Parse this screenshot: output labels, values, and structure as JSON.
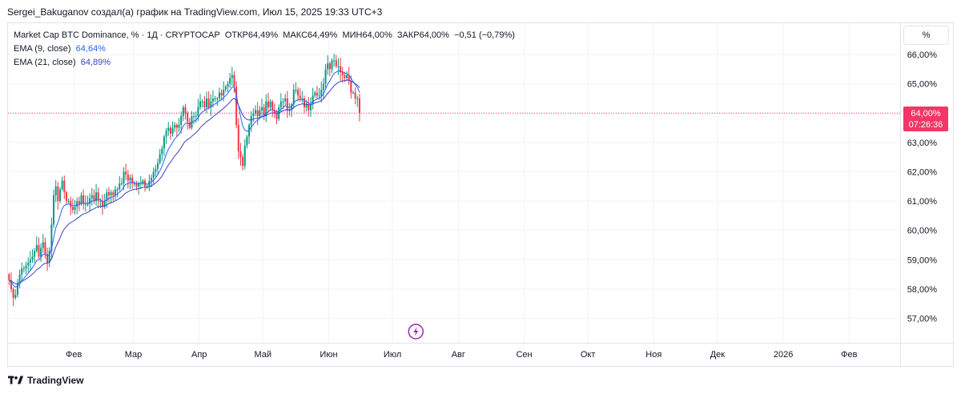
{
  "header": {
    "title": "Sergei_Bakuganov создал(а) график на TradingView.com, Июл 15, 2025 19:33 UTC+3"
  },
  "legend": {
    "symbol": "Market Cap BTC Dominance, % · 1Д · CRYPTOCAP",
    "open_label": "ОТКР",
    "open": "64,49%",
    "high_label": "МАКС",
    "high": "64,49%",
    "low_label": "МИН",
    "low": "64,00%",
    "close_label": "ЗАКР",
    "close": "64,00%",
    "change": "−0,51 (−0,79%)",
    "ema9_label": "EMA (9, close)",
    "ema9_value": "64,64%",
    "ema21_label": "EMA (21, close)",
    "ema21_value": "64,89%"
  },
  "scale_mode": "%",
  "price_tag": {
    "value": "64,00%",
    "countdown": "07:26:36"
  },
  "footer": {
    "brand": "TradingView"
  },
  "icons": {
    "lightning": "lightning-icon",
    "logo": "tradingview-logo-icon"
  },
  "colors": {
    "up": "#089981",
    "down": "#f23645",
    "ema9": "#2962ff",
    "ema21": "#3f3fbf",
    "last_price": "#f23666",
    "event": "#9c27b0"
  },
  "chart_data": {
    "type": "candlestick",
    "title": "Market Cap BTC Dominance, %",
    "ylim": [
      56.6,
      66.4
    ],
    "y_ticks": [
      {
        "value": 57,
        "label": "57,00%"
      },
      {
        "value": 58,
        "label": "58,00%"
      },
      {
        "value": 59,
        "label": "59,00%"
      },
      {
        "value": 60,
        "label": "60,00%"
      },
      {
        "value": 61,
        "label": "61,00%"
      },
      {
        "value": 62,
        "label": "62,00%"
      },
      {
        "value": 63,
        "label": "63,00%"
      },
      {
        "value": 64,
        "label": "64,00%"
      },
      {
        "value": 65,
        "label": "65,00%"
      },
      {
        "value": 66,
        "label": "66,00%"
      }
    ],
    "x_start_day": 0,
    "x_end_day": 420,
    "x_ticks": [
      {
        "day": 31,
        "label": "Фев"
      },
      {
        "day": 59,
        "label": "Мар"
      },
      {
        "day": 90,
        "label": "Апр"
      },
      {
        "day": 120,
        "label": "Май"
      },
      {
        "day": 151,
        "label": "Июн"
      },
      {
        "day": 181,
        "label": "Июл"
      },
      {
        "day": 212,
        "label": "Авг"
      },
      {
        "day": 243,
        "label": "Сен"
      },
      {
        "day": 273,
        "label": "Окт"
      },
      {
        "day": 304,
        "label": "Ноя"
      },
      {
        "day": 334,
        "label": "Дек"
      },
      {
        "day": 365,
        "label": "2026"
      },
      {
        "day": 396,
        "label": "Фев"
      }
    ],
    "last_price": 64.0,
    "event_day": 192,
    "closes": [
      58.3,
      58.0,
      57.7,
      57.8,
      58.2,
      58.5,
      58.7,
      58.7,
      58.8,
      58.9,
      59.0,
      59.1,
      59.3,
      59.5,
      59.1,
      59.4,
      59.6,
      59.2,
      58.9,
      59.3,
      60.2,
      61.2,
      61.5,
      61.0,
      61.4,
      61.7,
      61.3,
      61.0,
      61.0,
      60.8,
      60.7,
      60.8,
      61.0,
      60.9,
      61.2,
      60.9,
      60.9,
      60.9,
      61.1,
      61.2,
      61.0,
      61.3,
      61.0,
      61.0,
      60.8,
      61.0,
      61.3,
      61.2,
      61.3,
      61.2,
      61.4,
      61.4,
      61.6,
      61.6,
      62.0,
      61.9,
      61.7,
      61.8,
      61.6,
      61.6,
      61.5,
      61.6,
      61.6,
      61.7,
      61.5,
      61.5,
      61.7,
      61.8,
      62.0,
      62.1,
      62.3,
      62.6,
      62.8,
      63.2,
      63.4,
      63.5,
      63.3,
      63.5,
      63.6,
      63.5,
      63.6,
      63.9,
      64.2,
      64.0,
      63.7,
      63.5,
      63.9,
      63.9,
      63.9,
      64.2,
      64.4,
      64.4,
      64.2,
      64.5,
      64.2,
      64.4,
      64.5,
      64.5,
      64.5,
      64.7,
      64.6,
      64.8,
      64.9,
      65.0,
      65.2,
      65.3,
      64.9,
      63.6,
      62.7,
      62.5,
      62.2,
      62.9,
      63.2,
      63.6,
      63.9,
      64.0,
      64.1,
      63.9,
      64.1,
      64.2,
      63.9,
      64.4,
      64.2,
      64.4,
      64.1,
      64.0,
      63.8,
      64.2,
      64.4,
      64.4,
      64.5,
      64.1,
      64.1,
      64.3,
      64.8,
      64.8,
      64.6,
      64.5,
      64.5,
      64.2,
      64.3,
      64.1,
      64.3,
      64.6,
      64.7,
      64.6,
      64.6,
      64.8,
      65.0,
      65.5,
      65.7,
      65.5,
      65.8,
      65.8,
      65.6,
      65.6,
      65.4,
      65.3,
      65.2,
      65.3,
      65.1,
      64.7,
      64.7,
      64.5,
      64.5,
      64.0
    ],
    "opens_first": 58.5
  }
}
